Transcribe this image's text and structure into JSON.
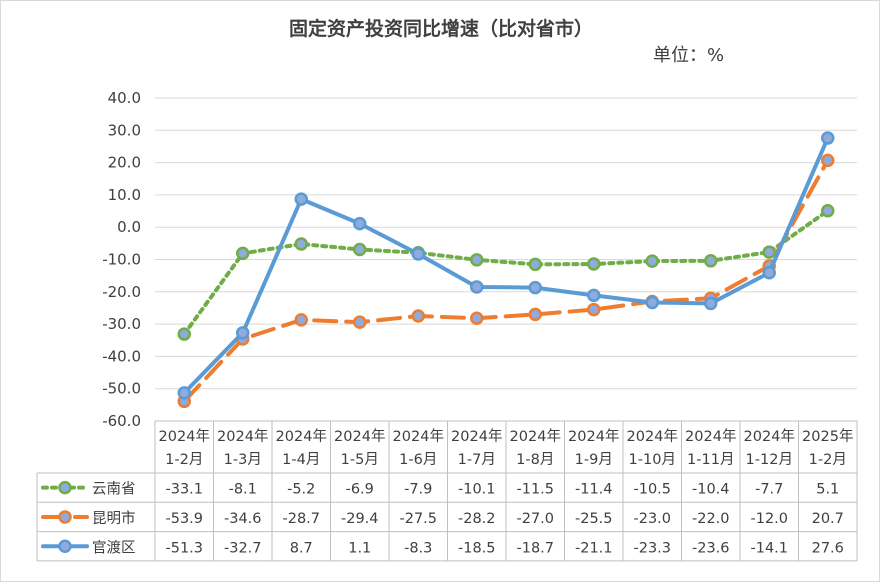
{
  "chart_data": {
    "type": "line",
    "title": "固定资产投资同比增速（比对省市）",
    "unit_label": "单位：%",
    "ylim": [
      -60,
      40
    ],
    "yticks": [
      "40.0",
      "30.0",
      "20.0",
      "10.0",
      "0.0",
      "-10.0",
      "-20.0",
      "-30.0",
      "-40.0",
      "-50.0",
      "-60.0"
    ],
    "grid": true,
    "legend_placement": "data-table",
    "categories": [
      [
        "2024年",
        "1-2月"
      ],
      [
        "2024年",
        "1-3月"
      ],
      [
        "2024年",
        "1-4月"
      ],
      [
        "2024年",
        "1-5月"
      ],
      [
        "2024年",
        "1-6月"
      ],
      [
        "2024年",
        "1-7月"
      ],
      [
        "2024年",
        "1-8月"
      ],
      [
        "2024年",
        "1-9月"
      ],
      [
        "2024年",
        "1-10月"
      ],
      [
        "2024年",
        "1-11月"
      ],
      [
        "2024年",
        "1-12月"
      ],
      [
        "2025年",
        "1-2月"
      ]
    ],
    "series": [
      {
        "name": "云南省",
        "color": "#70ad47",
        "style": "dotted",
        "values": [
          -33.1,
          -8.1,
          -5.2,
          -6.9,
          -7.9,
          -10.1,
          -11.5,
          -11.4,
          -10.5,
          -10.4,
          -7.7,
          5.1
        ],
        "labels": [
          "-33.1",
          "-8.1",
          "-5.2",
          "-6.9",
          "-7.9",
          "-10.1",
          "-11.5",
          "-11.4",
          "-10.5",
          "-10.4",
          "-7.7",
          "5.1"
        ]
      },
      {
        "name": "昆明市",
        "color": "#ed7d31",
        "style": "dashed",
        "values": [
          -53.9,
          -34.6,
          -28.7,
          -29.4,
          -27.5,
          -28.2,
          -27.0,
          -25.5,
          -23.0,
          -22.0,
          -12.0,
          20.7
        ],
        "labels": [
          "-53.9",
          "-34.6",
          "-28.7",
          "-29.4",
          "-27.5",
          "-28.2",
          "-27.0",
          "-25.5",
          "-23.0",
          "-22.0",
          "-12.0",
          "20.7"
        ]
      },
      {
        "name": "官渡区",
        "color": "#5b9bd5",
        "style": "solid",
        "values": [
          -51.3,
          -32.7,
          8.7,
          1.1,
          -8.3,
          -18.5,
          -18.7,
          -21.1,
          -23.3,
          -23.6,
          -14.1,
          27.6
        ],
        "labels": [
          "-51.3",
          "-32.7",
          "8.7",
          "1.1",
          "-8.3",
          "-18.5",
          "-18.7",
          "-21.1",
          "-23.3",
          "-23.6",
          "-14.1",
          "27.6"
        ]
      }
    ],
    "marker_fill": "#8faadc"
  }
}
